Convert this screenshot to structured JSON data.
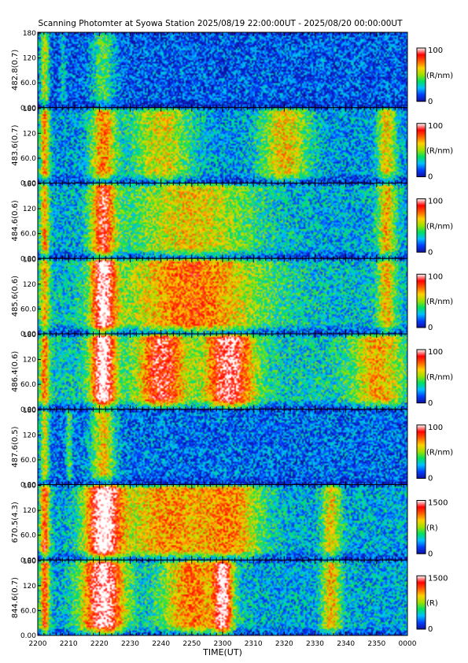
{
  "chart_data": {
    "type": "heatmap",
    "title": "Scanning Photomter at Syowa Station 2025/08/19 22:00:00UT - 2025/08/20 00:00:00UT",
    "xlabel": "TIME(UT)",
    "x_ticks": [
      "2200",
      "2210",
      "2220",
      "2230",
      "2240",
      "2250",
      "2300",
      "2310",
      "2320",
      "2330",
      "2340",
      "2350",
      "0000"
    ],
    "y_ticks": [
      "0.00",
      "60.0",
      "120",
      "180"
    ],
    "ylim": [
      0,
      180
    ],
    "colormap": [
      "#1010a0",
      "#0040ff",
      "#00c0ff",
      "#00e060",
      "#a0e000",
      "#ffd000",
      "#ff6000",
      "#ff0000",
      "#ffffff"
    ],
    "panels": [
      {
        "label": "482.8(0.7)",
        "cb_max": "100",
        "cb_min": "0",
        "unit": "(R/nm)",
        "intensity": 0.25,
        "features": [
          {
            "t": 2,
            "w": 1.5,
            "v": 0.5
          },
          {
            "t": 21,
            "w": 4,
            "v": 0.35
          },
          {
            "t": 8,
            "w": 1,
            "v": 0.2
          }
        ]
      },
      {
        "label": "483.6(0.7)",
        "cb_max": "100",
        "cb_min": "0",
        "unit": "(R/nm)",
        "intensity": 0.4,
        "features": [
          {
            "t": 21,
            "w": 4,
            "v": 0.6
          },
          {
            "t": 2,
            "w": 1.5,
            "v": 0.6
          },
          {
            "t": 40,
            "w": 10,
            "v": 0.45
          },
          {
            "t": 80,
            "w": 8,
            "v": 0.5
          },
          {
            "t": 113,
            "w": 3,
            "v": 0.5
          }
        ]
      },
      {
        "label": "484.6(0.6)",
        "cb_max": "100",
        "cb_min": "0",
        "unit": "(R/nm)",
        "intensity": 0.45,
        "features": [
          {
            "t": 21,
            "w": 4,
            "v": 0.75
          },
          {
            "t": 2,
            "w": 1.5,
            "v": 0.55
          },
          {
            "t": 50,
            "w": 20,
            "v": 0.45
          },
          {
            "t": 113,
            "w": 3,
            "v": 0.5
          }
        ]
      },
      {
        "label": "485.6(0.6)",
        "cb_max": "100",
        "cb_min": "0",
        "unit": "(R/nm)",
        "intensity": 0.5,
        "features": [
          {
            "t": 21,
            "w": 4,
            "v": 0.9
          },
          {
            "t": 2,
            "w": 1.5,
            "v": 0.5
          },
          {
            "t": 50,
            "w": 22,
            "v": 0.6
          },
          {
            "t": 113,
            "w": 3,
            "v": 0.45
          }
        ]
      },
      {
        "label": "486.4(0.6)",
        "cb_max": "100",
        "cb_min": "0",
        "unit": "(R/nm)",
        "intensity": 0.55,
        "features": [
          {
            "t": 21,
            "w": 4,
            "v": 1.0
          },
          {
            "t": 2,
            "w": 1.5,
            "v": 0.55
          },
          {
            "t": 40,
            "w": 8,
            "v": 0.75
          },
          {
            "t": 62,
            "w": 8,
            "v": 0.85
          },
          {
            "t": 110,
            "w": 8,
            "v": 0.45
          }
        ]
      },
      {
        "label": "487.6(0.5)",
        "cb_max": "100",
        "cb_min": "0",
        "unit": "(R/nm)",
        "intensity": 0.3,
        "features": [
          {
            "t": 21,
            "w": 4,
            "v": 0.55
          },
          {
            "t": 2,
            "w": 1.5,
            "v": 0.5
          },
          {
            "t": 10,
            "w": 1,
            "v": 0.35
          }
        ]
      },
      {
        "label": "670.5(4.3)",
        "cb_max": "1500",
        "cb_min": "0",
        "unit": "(R)",
        "intensity": 0.45,
        "features": [
          {
            "t": 2,
            "w": 1.5,
            "v": 0.7
          },
          {
            "t": 21,
            "w": 6,
            "v": 1.0
          },
          {
            "t": 42,
            "w": 15,
            "v": 0.55
          },
          {
            "t": 63,
            "w": 10,
            "v": 0.5
          },
          {
            "t": 95,
            "w": 3,
            "v": 0.45
          }
        ]
      },
      {
        "label": "844.6(0.7)",
        "cb_max": "1500",
        "cb_min": "0",
        "unit": "(R)",
        "intensity": 0.45,
        "features": [
          {
            "t": 2,
            "w": 1.5,
            "v": 0.7
          },
          {
            "t": 21,
            "w": 7,
            "v": 1.0
          },
          {
            "t": 50,
            "w": 10,
            "v": 0.6
          },
          {
            "t": 60,
            "w": 3,
            "v": 0.8
          },
          {
            "t": 95,
            "w": 3,
            "v": 0.5
          }
        ]
      }
    ]
  }
}
